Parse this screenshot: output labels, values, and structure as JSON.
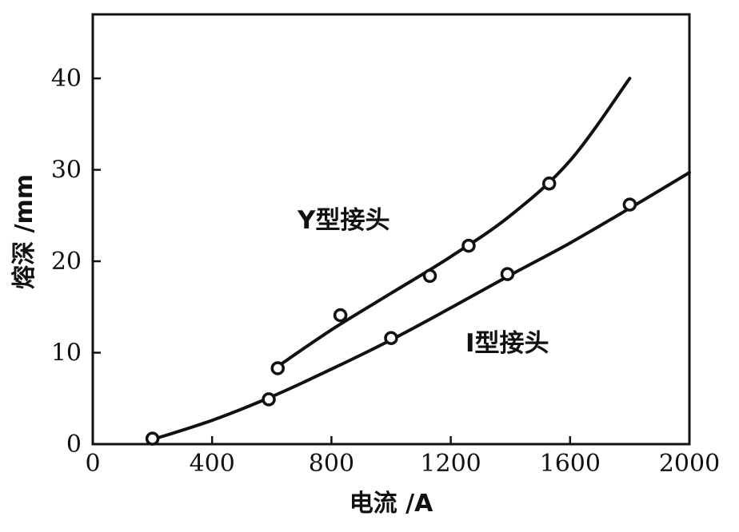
{
  "chart_data": {
    "type": "line",
    "title": "",
    "xlabel": "电流 /A",
    "ylabel": "熔深 /mm",
    "xlim": [
      0,
      2000
    ],
    "ylim": [
      0,
      47
    ],
    "x_ticks": [
      0,
      400,
      800,
      1200,
      1600,
      2000
    ],
    "y_ticks": [
      0,
      10,
      20,
      30,
      40
    ],
    "grid": false,
    "series": [
      {
        "name": "Y型接头",
        "points": [
          [
            620,
            8.3
          ],
          [
            830,
            14.1
          ],
          [
            1130,
            18.4
          ],
          [
            1260,
            21.7
          ],
          [
            1530,
            28.5
          ]
        ],
        "curve": [
          [
            620,
            8.5
          ],
          [
            800,
            12.5
          ],
          [
            1000,
            16.5
          ],
          [
            1200,
            20.5
          ],
          [
            1400,
            25.0
          ],
          [
            1600,
            31.0
          ],
          [
            1800,
            40.0
          ]
        ]
      },
      {
        "name": "I型接头",
        "points": [
          [
            200,
            0.6
          ],
          [
            590,
            4.9
          ],
          [
            1000,
            11.6
          ],
          [
            1390,
            18.6
          ],
          [
            1800,
            26.2
          ]
        ],
        "curve": [
          [
            200,
            0.5
          ],
          [
            400,
            2.6
          ],
          [
            600,
            5.2
          ],
          [
            800,
            8.2
          ],
          [
            1000,
            11.4
          ],
          [
            1200,
            14.9
          ],
          [
            1400,
            18.5
          ],
          [
            1600,
            22.0
          ],
          [
            1800,
            25.8
          ],
          [
            2000,
            29.7
          ]
        ]
      }
    ]
  }
}
